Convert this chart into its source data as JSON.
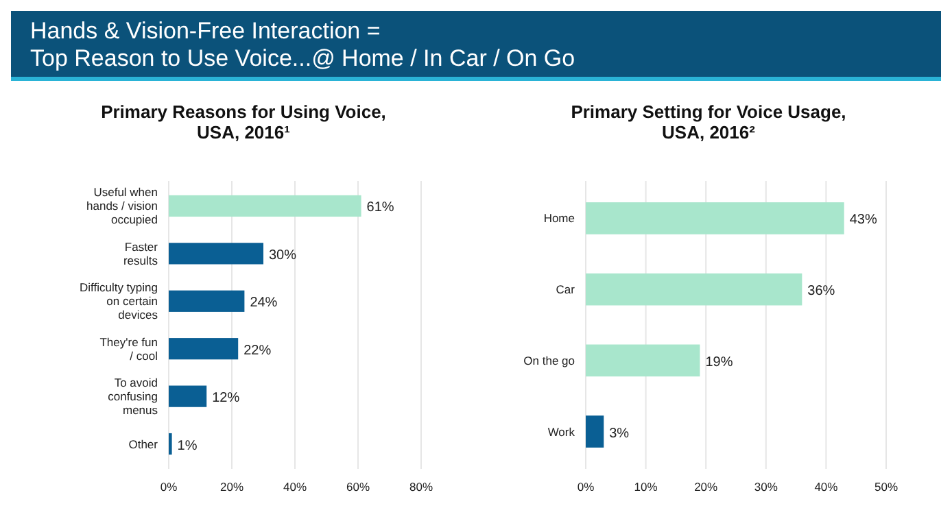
{
  "chart_data": [
    {
      "type": "bar",
      "title": "Hands & Vision-Free Interaction =\nTop Reason to Use Voice...@ Home / In Car / On Go",
      "subtitle": "Primary Reasons for Using Voice,\nUSA, 2016¹",
      "orientation": "horizontal",
      "categories": [
        "Useful when\nhands / vision\noccupied",
        "Faster\nresults",
        "Difficulty typing\non certain\ndevices",
        "They're fun\n/ cool",
        "To avoid\nconfusing\nmenus",
        "Other"
      ],
      "values": [
        61,
        30,
        24,
        22,
        12,
        1
      ],
      "colors": [
        "#a8e6cc",
        "#0a5f94",
        "#0a5f94",
        "#0a5f94",
        "#0a5f94",
        "#0a5f94"
      ],
      "xlim": [
        0,
        80
      ],
      "xticks": [
        {
          "value": 0,
          "label": "0%"
        },
        {
          "value": 20,
          "label": "20%"
        },
        {
          "value": 40,
          "label": "40%"
        },
        {
          "value": 60,
          "label": "60%"
        },
        {
          "value": 80,
          "label": "80%"
        }
      ],
      "value_labels": [
        "61%",
        "30%",
        "24%",
        "22%",
        "12%",
        "1%"
      ],
      "grid": "x"
    },
    {
      "type": "bar",
      "title": "Primary Setting for Voice Usage,\nUSA, 2016²",
      "orientation": "horizontal",
      "categories": [
        "Home",
        "Car",
        "On the go",
        "Work"
      ],
      "values": [
        43,
        36,
        19,
        3
      ],
      "colors": [
        "#a8e6cc",
        "#a8e6cc",
        "#a8e6cc",
        "#0a5f94"
      ],
      "xlim": [
        0,
        50
      ],
      "xticks": [
        {
          "value": 0,
          "label": "0%"
        },
        {
          "value": 10,
          "label": "10%"
        },
        {
          "value": 20,
          "label": "20%"
        },
        {
          "value": 30,
          "label": "30%"
        },
        {
          "value": 40,
          "label": "40%"
        },
        {
          "value": 50,
          "label": "50%"
        }
      ],
      "value_labels": [
        "43%",
        "36%",
        "19%",
        "3%"
      ],
      "grid": "x"
    }
  ]
}
